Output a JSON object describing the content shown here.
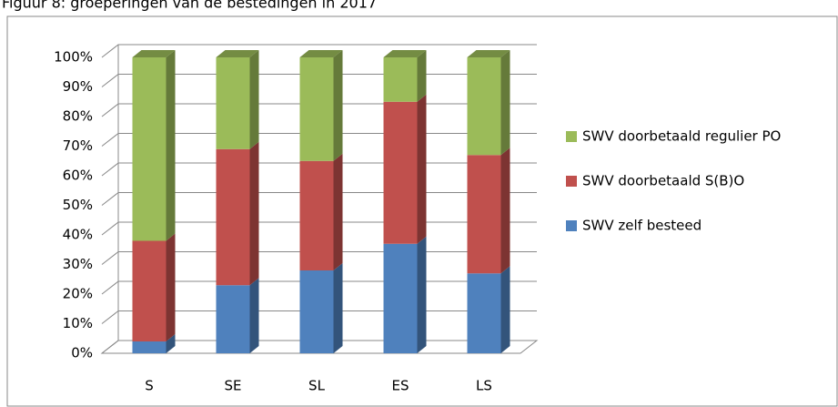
{
  "chart_data": {
    "type": "bar",
    "stacked": true,
    "title": "Figuur 8: groeperingen van de bestedingen in 2017",
    "categories": [
      "S",
      "SE",
      "SL",
      "ES",
      "LS"
    ],
    "series": [
      {
        "name": "SWV zelf besteed",
        "color": "#4f81bd",
        "values": [
          4,
          23,
          28,
          37,
          27
        ]
      },
      {
        "name": "SWV doorbetaald S(B)O",
        "color": "#c0504d",
        "values": [
          34,
          46,
          37,
          48,
          40
        ]
      },
      {
        "name": "SWV doorbetaald regulier PO",
        "color": "#9bbb59",
        "values": [
          62,
          31,
          35,
          15,
          33
        ]
      }
    ],
    "ylim": [
      0,
      100
    ],
    "yticks": [
      {
        "value": 0,
        "label": "0%"
      },
      {
        "value": 10,
        "label": "10%"
      },
      {
        "value": 20,
        "label": "20%"
      },
      {
        "value": 30,
        "label": "30%"
      },
      {
        "value": 40,
        "label": "40%"
      },
      {
        "value": 50,
        "label": "50%"
      },
      {
        "value": 60,
        "label": "60%"
      },
      {
        "value": 70,
        "label": "70%"
      },
      {
        "value": 80,
        "label": "80%"
      },
      {
        "value": 90,
        "label": "90%"
      },
      {
        "value": 100,
        "label": "100%"
      }
    ],
    "grid": true,
    "legend": "right"
  }
}
